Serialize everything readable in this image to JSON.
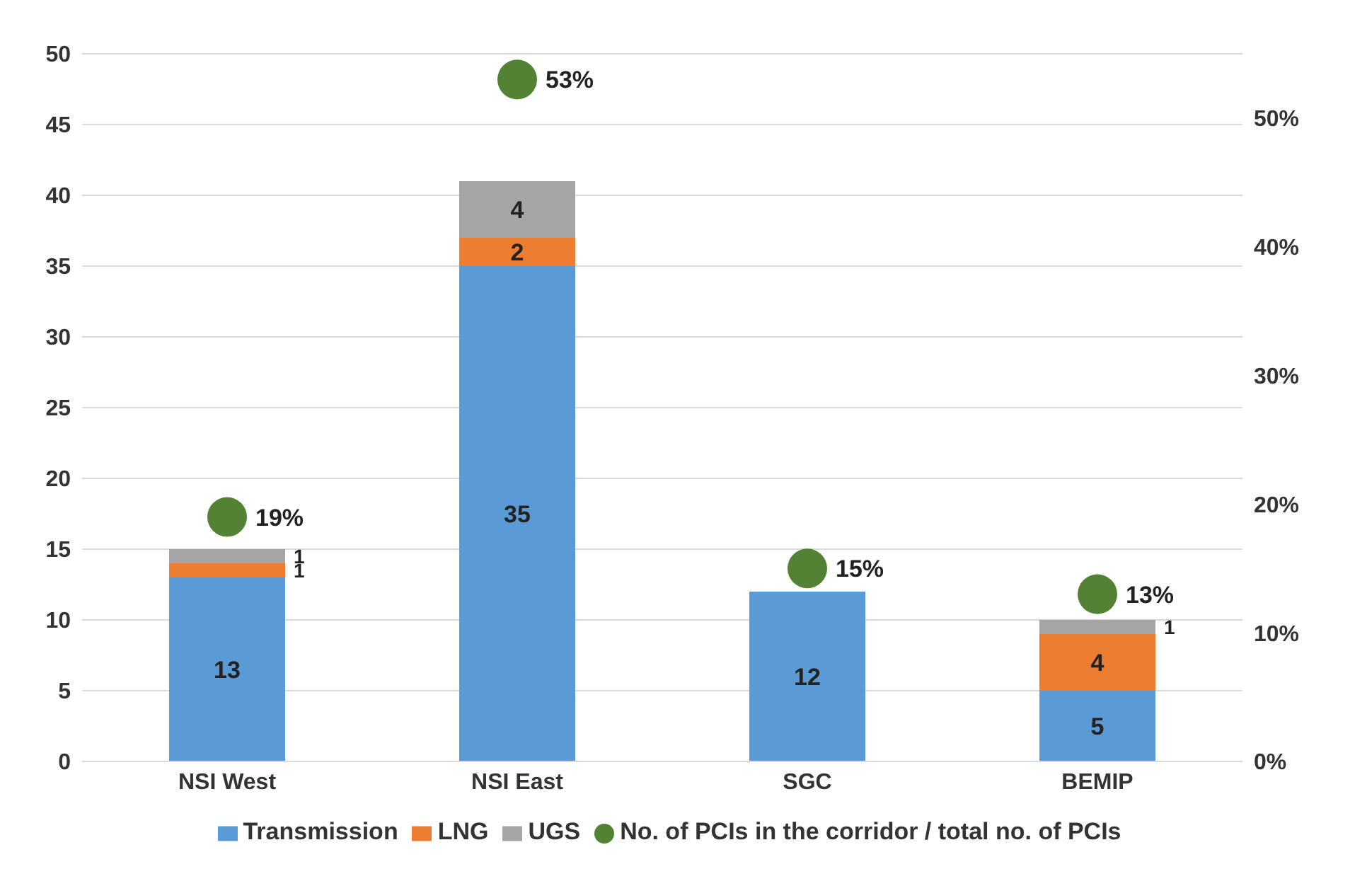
{
  "chart_data": {
    "type": "bar",
    "stacked": true,
    "categories": [
      "NSI West",
      "NSI East",
      "SGC",
      "BEMIP"
    ],
    "series": [
      {
        "name": "Transmission",
        "color": "#5b9bd5",
        "values": [
          13,
          35,
          12,
          5
        ],
        "value_labels": [
          "13",
          "35",
          "12",
          "5"
        ]
      },
      {
        "name": "LNG",
        "color": "#ed7d31",
        "values": [
          1,
          2,
          0,
          4
        ],
        "value_labels": [
          "1",
          "2",
          null,
          "4"
        ]
      },
      {
        "name": "UGS",
        "color": "#a5a5a5",
        "values": [
          1,
          4,
          0,
          1
        ],
        "value_labels": [
          "1",
          "4",
          null,
          "1"
        ]
      },
      {
        "name": "No. of PCIs in the corridor / total no. of PCIs",
        "type": "scatter",
        "axis": "y2",
        "marker": "circle",
        "color": "#548235",
        "values": [
          19,
          53,
          15,
          13
        ],
        "value_labels": [
          "19%",
          "53%",
          "15%",
          "13%"
        ]
      }
    ],
    "ylim": [
      0,
      50
    ],
    "yticks": [
      0,
      5,
      10,
      15,
      20,
      25,
      30,
      35,
      40,
      45,
      50
    ],
    "y2lim": [
      0,
      55
    ],
    "y2ticks": [
      {
        "value": 0,
        "label": "0%"
      },
      {
        "value": 10,
        "label": "10%"
      },
      {
        "value": 20,
        "label": "20%"
      },
      {
        "value": 30,
        "label": "30%"
      },
      {
        "value": 40,
        "label": "40%"
      },
      {
        "value": 50,
        "label": "50%"
      }
    ],
    "grid": "y",
    "legend": "bottom"
  }
}
